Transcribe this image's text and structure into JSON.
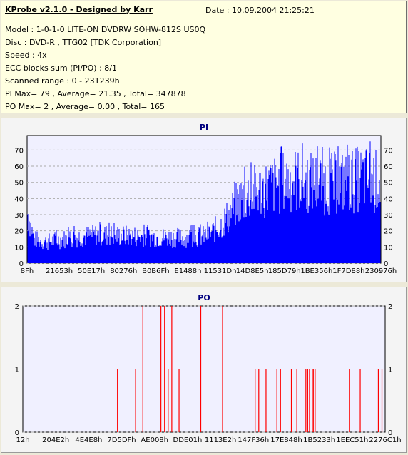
{
  "header": {
    "title": "KProbe v2.1.0 - Designed by Karr",
    "date": "Date : 10.09.2004 21:25:21",
    "lines": [
      "Model : 1-0-1-0 LITE-ON DVDRW SOHW-812S  US0Q",
      "Disc : DVD-R , TTG02 [TDK Corporation]",
      "Speed : 4x",
      "ECC blocks sum (PI/PO) : 8/1",
      "Scanned range : 0 - 231239h",
      "PI Max= 79 , Average= 21.35 , Total= 347878",
      "PO Max= 2 , Average= 0.00 , Total= 165"
    ]
  },
  "colors": {
    "bar": "#0000ff",
    "po_bar": "#ff0000",
    "plot_bg": "#f0f0ff",
    "title": "#000080"
  },
  "chart_data": [
    {
      "type": "area",
      "title": "PI",
      "ylim": [
        0,
        79
      ],
      "yticks": [
        0,
        10,
        20,
        30,
        40,
        50,
        60,
        70
      ],
      "xticks": [
        "8Fh",
        "21653h",
        "50E17h",
        "80276h",
        "B0B6Fh",
        "E1488h",
        "11531Dh",
        "14D8E5h",
        "185D79h",
        "1BE356h",
        "1F7D88h",
        "230976h"
      ],
      "profile_x": [
        0,
        0.02,
        0.05,
        0.1,
        0.2,
        0.3,
        0.4,
        0.45,
        0.5,
        0.52,
        0.55,
        0.58,
        0.6,
        0.62,
        0.65,
        0.7,
        0.75,
        0.8,
        0.85,
        0.9,
        0.95,
        1.0
      ],
      "profile_y": [
        35,
        16,
        14,
        16,
        19,
        18,
        17,
        17,
        18,
        20,
        26,
        35,
        42,
        45,
        48,
        52,
        56,
        54,
        53,
        54,
        57,
        54
      ],
      "grid": true
    },
    {
      "type": "bar",
      "title": "PO",
      "ylim": [
        0,
        2
      ],
      "yticks": [
        0,
        1,
        2
      ],
      "xticks": [
        "12h",
        "204E2h",
        "4E4E8h",
        "7D5DFh",
        "AE008h",
        "DDE01h",
        "1113E2h",
        "147F36h",
        "17E848h",
        "1B5233h",
        "1EEC51h",
        "2276C1h"
      ],
      "spikes_x": [
        0.26,
        0.31,
        0.33,
        0.38,
        0.39,
        0.4,
        0.41,
        0.43,
        0.49,
        0.55,
        0.64,
        0.65,
        0.67,
        0.7,
        0.71,
        0.74,
        0.755,
        0.78,
        0.785,
        0.79,
        0.8,
        0.805,
        0.9,
        0.93,
        0.98,
        0.99
      ],
      "spikes_y": [
        1,
        1,
        2,
        2,
        2,
        1,
        2,
        1,
        2,
        2,
        1,
        1,
        1,
        1,
        1,
        1,
        1,
        1,
        1,
        1,
        1,
        1,
        1,
        1,
        1,
        1
      ],
      "grid": true
    }
  ]
}
